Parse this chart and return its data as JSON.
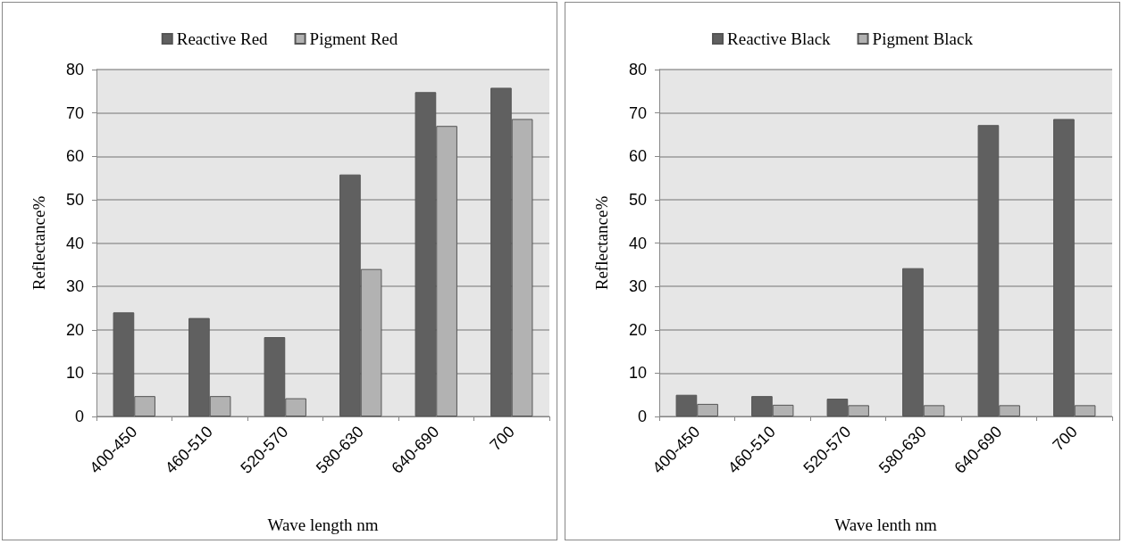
{
  "chart_data": [
    {
      "type": "bar",
      "xlabel": "Wave length nm",
      "ylabel": "Reflectance%",
      "categories": [
        "400-450",
        "460-510",
        "520-570",
        "580-630",
        "640-690",
        "700"
      ],
      "series": [
        {
          "name": "Reactive Red",
          "color": "#606060",
          "values": [
            24,
            22.7,
            18.3,
            55.8,
            74.8,
            75.8
          ]
        },
        {
          "name": "Pigment Red",
          "color": "#b2b2b2",
          "values": [
            4.7,
            4.7,
            4.2,
            34,
            67,
            68.6
          ]
        }
      ],
      "ylim": [
        0,
        80
      ],
      "yticks": [
        0,
        10,
        20,
        30,
        40,
        50,
        60,
        70,
        80
      ],
      "grid": "y",
      "legend": "top"
    },
    {
      "type": "bar",
      "xlabel": "Wave lenth nm",
      "ylabel": "Reflectance%",
      "categories": [
        "400-450",
        "460-510",
        "520-570",
        "580-630",
        "640-690",
        "700"
      ],
      "series": [
        {
          "name": "Reactive Black",
          "color": "#606060",
          "values": [
            5,
            4.7,
            4.1,
            34.2,
            67.2,
            68.6
          ]
        },
        {
          "name": "Pigment Black",
          "color": "#b2b2b2",
          "values": [
            2.9,
            2.7,
            2.6,
            2.6,
            2.6,
            2.6
          ]
        }
      ],
      "ylim": [
        0,
        80
      ],
      "yticks": [
        0,
        10,
        20,
        30,
        40,
        50,
        60,
        70,
        80
      ],
      "grid": "y",
      "legend": "top"
    }
  ]
}
